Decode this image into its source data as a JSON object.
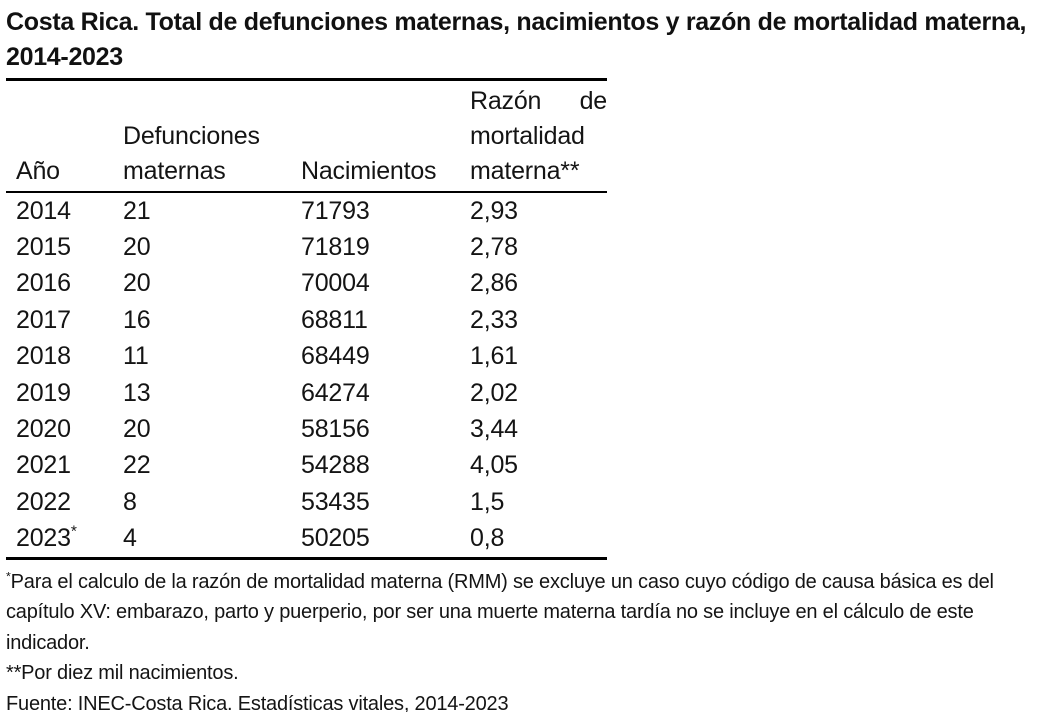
{
  "title": "Costa Rica. Total de defunciones maternas, nacimientos y razón de mortalidad materna, 2014-2023",
  "table": {
    "header": {
      "col1": "Año",
      "col2_line1": "Defunciones",
      "col2_line2": "maternas",
      "col3": "Nacimientos",
      "col4_line1_left": "Razón",
      "col4_line1_right": "de",
      "col4_line2": "mortalidad",
      "col4_line3": "materna**"
    },
    "rows": [
      {
        "year": "2014",
        "year_note": "",
        "deaths": "21",
        "births": "71793",
        "rmm": "2,93"
      },
      {
        "year": "2015",
        "year_note": "",
        "deaths": "20",
        "births": "71819",
        "rmm": "2,78"
      },
      {
        "year": "2016",
        "year_note": "",
        "deaths": "20",
        "births": "70004",
        "rmm": "2,86"
      },
      {
        "year": "2017",
        "year_note": "",
        "deaths": "16",
        "births": "68811",
        "rmm": "2,33"
      },
      {
        "year": "2018",
        "year_note": "",
        "deaths": "11",
        "births": "68449",
        "rmm": "1,61"
      },
      {
        "year": "2019",
        "year_note": "",
        "deaths": "13",
        "births": "64274",
        "rmm": "2,02"
      },
      {
        "year": "2020",
        "year_note": "",
        "deaths": "20",
        "births": "58156",
        "rmm": "3,44"
      },
      {
        "year": "2021",
        "year_note": "",
        "deaths": "22",
        "births": "54288",
        "rmm": "4,05"
      },
      {
        "year": "2022",
        "year_note": "",
        "deaths": "8",
        "births": "53435",
        "rmm": "1,5"
      },
      {
        "year": "2023",
        "year_note": "*",
        "deaths": "4",
        "births": "50205",
        "rmm": "0,8"
      }
    ]
  },
  "footnotes": {
    "note1_marker": "*",
    "note1_text": "Para el calculo de la razón de mortalidad materna (RMM) se excluye un caso cuyo código de causa básica es del capítulo XV: embarazo, parto y puerperio, por ser una muerte materna tardía no se incluye en el cálculo de este indicador.",
    "note2": "**Por diez mil nacimientos.",
    "source": "Fuente: INEC-Costa Rica. Estadísticas vitales, 2014-2023"
  },
  "colors": {
    "text": "#141414",
    "rule": "#000000",
    "background": "#ffffff"
  }
}
